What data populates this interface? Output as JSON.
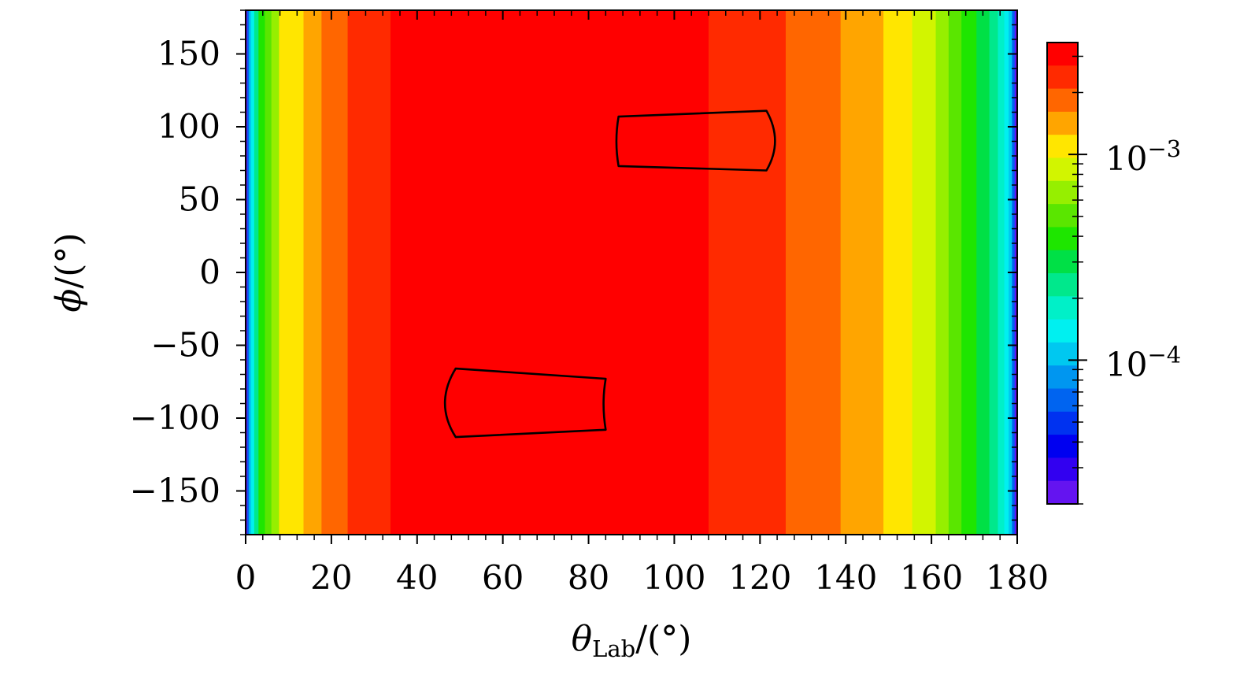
{
  "chart_data": {
    "type": "heatmap",
    "title": "",
    "xlabel": {
      "symbol": "θ",
      "subscript": "Lab",
      "unit": "/(°)"
    },
    "ylabel": {
      "symbol": "ϕ",
      "unit": "/(°)"
    },
    "xlim": [
      0,
      180
    ],
    "ylim": [
      -180,
      180
    ],
    "x_ticks": [
      0,
      20,
      40,
      60,
      80,
      100,
      120,
      140,
      160,
      180
    ],
    "x_tick_labels": [
      "0",
      "20",
      "40",
      "60",
      "80",
      "100",
      "120",
      "140",
      "160",
      "180"
    ],
    "y_ticks": [
      150,
      100,
      50,
      0,
      -50,
      -100,
      -150
    ],
    "y_tick_labels": [
      "150",
      "100",
      "50",
      "0",
      "−50",
      "−100",
      "−150"
    ],
    "color_scale": "log",
    "colorbar": {
      "min": 2e-05,
      "max": 0.0035,
      "ticks": [
        {
          "value": 0.001,
          "base": "10",
          "exponent": "−3"
        },
        {
          "value": 0.0001,
          "base": "10",
          "exponent": "−4"
        }
      ]
    },
    "palette_top_to_bottom": [
      "#ff0000",
      "#ff2a00",
      "#ff6600",
      "#ffa500",
      "#ffe600",
      "#d2f500",
      "#96ef00",
      "#5ae600",
      "#1ee600",
      "#00e046",
      "#00e88c",
      "#00f0c8",
      "#00f0f0",
      "#00c8f0",
      "#0096f0",
      "#0064f0",
      "#0032f0",
      "#0000f0",
      "#3200f0",
      "#6414f0"
    ],
    "bands": [
      {
        "theta_start": 0,
        "theta_end": 0.4,
        "color": "#6414f0"
      },
      {
        "theta_start": 0.4,
        "theta_end": 0.8,
        "color": "#0064f0"
      },
      {
        "theta_start": 0.8,
        "theta_end": 1.3,
        "color": "#00c8f0"
      },
      {
        "theta_start": 1.3,
        "theta_end": 2.0,
        "color": "#00f0f0"
      },
      {
        "theta_start": 2.0,
        "theta_end": 3.0,
        "color": "#00e88c"
      },
      {
        "theta_start": 3.0,
        "theta_end": 4.5,
        "color": "#1ee600"
      },
      {
        "theta_start": 4.5,
        "theta_end": 6.0,
        "color": "#5ae600"
      },
      {
        "theta_start": 6.0,
        "theta_end": 7.8,
        "color": "#96ef00"
      },
      {
        "theta_start": 7.8,
        "theta_end": 13.5,
        "color": "#ffe600"
      },
      {
        "theta_start": 13.5,
        "theta_end": 17.7,
        "color": "#ffa500"
      },
      {
        "theta_start": 17.7,
        "theta_end": 23.8,
        "color": "#ff6600"
      },
      {
        "theta_start": 23.8,
        "theta_end": 33.8,
        "color": "#ff2a00"
      },
      {
        "theta_start": 33.8,
        "theta_end": 108.0,
        "color": "#ff0000"
      },
      {
        "theta_start": 108.0,
        "theta_end": 126.0,
        "color": "#ff2a00"
      },
      {
        "theta_start": 126.0,
        "theta_end": 138.8,
        "color": "#ff6600"
      },
      {
        "theta_start": 138.8,
        "theta_end": 148.8,
        "color": "#ffa500"
      },
      {
        "theta_start": 148.8,
        "theta_end": 155.5,
        "color": "#ffe600"
      },
      {
        "theta_start": 155.5,
        "theta_end": 161.0,
        "color": "#d2f500"
      },
      {
        "theta_start": 161.0,
        "theta_end": 164.0,
        "color": "#96ef00"
      },
      {
        "theta_start": 164.0,
        "theta_end": 167.0,
        "color": "#5ae600"
      },
      {
        "theta_start": 167.0,
        "theta_end": 170.5,
        "color": "#1ee600"
      },
      {
        "theta_start": 170.5,
        "theta_end": 173.5,
        "color": "#00e046"
      },
      {
        "theta_start": 173.5,
        "theta_end": 175.5,
        "color": "#00e88c"
      },
      {
        "theta_start": 175.5,
        "theta_end": 177.0,
        "color": "#00f0c8"
      },
      {
        "theta_start": 177.0,
        "theta_end": 178.0,
        "color": "#00f0f0"
      },
      {
        "theta_start": 178.0,
        "theta_end": 178.8,
        "color": "#00c8f0"
      },
      {
        "theta_start": 178.8,
        "theta_end": 179.4,
        "color": "#0064f0"
      },
      {
        "theta_start": 179.4,
        "theta_end": 180.0,
        "color": "#6414f0"
      }
    ],
    "regions": [
      {
        "name": "detector-upper",
        "outline": [
          [
            87,
            107
          ],
          [
            121.5,
            111
          ],
          [
            123.5,
            90
          ],
          [
            121.5,
            70
          ],
          [
            87,
            73
          ],
          [
            86.5,
            90
          ]
        ]
      },
      {
        "name": "detector-lower",
        "outline": [
          [
            49,
            -66
          ],
          [
            84,
            -73
          ],
          [
            83.5,
            -90
          ],
          [
            84,
            -108
          ],
          [
            49,
            -113
          ],
          [
            46.5,
            -90
          ]
        ]
      }
    ]
  }
}
